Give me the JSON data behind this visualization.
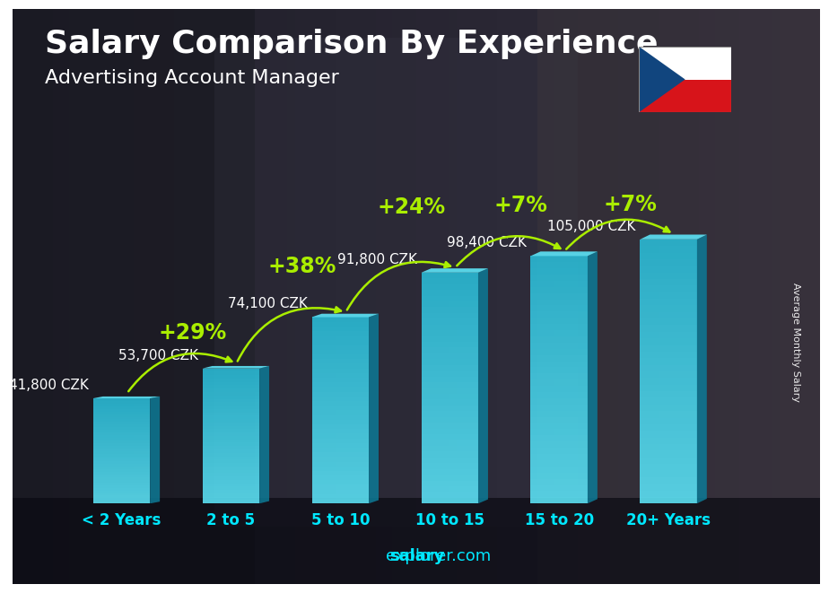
{
  "title": "Salary Comparison By Experience",
  "subtitle": "Advertising Account Manager",
  "categories": [
    "< 2 Years",
    "2 to 5",
    "5 to 10",
    "10 to 15",
    "15 to 20",
    "20+ Years"
  ],
  "values": [
    41800,
    53700,
    74100,
    91800,
    98400,
    105000
  ],
  "labels": [
    "41,800 CZK",
    "53,700 CZK",
    "74,100 CZK",
    "91,800 CZK",
    "98,400 CZK",
    "105,000 CZK"
  ],
  "pct_changes": [
    "+29%",
    "+38%",
    "+24%",
    "+7%",
    "+7%"
  ],
  "bar_face_color": "#29bcd8",
  "bar_side_color": "#0d7a96",
  "bar_top_color": "#5de5f8",
  "green_color": "#aaee00",
  "ylabel": "Average Monthly Salary",
  "footer_salary": "salary",
  "footer_rest": "explorer.com",
  "title_fontsize": 26,
  "subtitle_fontsize": 16,
  "tick_label_fontsize": 12,
  "value_label_fontsize": 11,
  "pct_fontsize": 17,
  "ylim": [
    0,
    128000
  ],
  "bg_colors": [
    "#3a3a4a",
    "#2a2a35",
    "#1e1e28"
  ],
  "label_color": "white",
  "tick_color": "#00e8ff"
}
